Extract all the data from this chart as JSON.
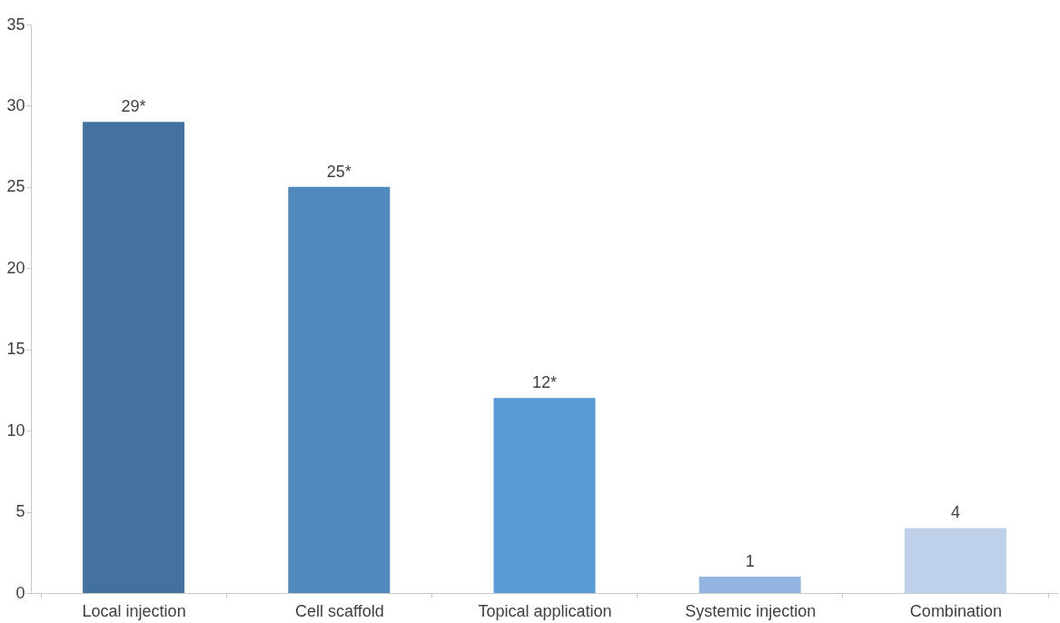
{
  "chart_data": {
    "type": "bar",
    "categories": [
      "Local injection",
      "Cell scaffold",
      "Topical application",
      "Systemic injection",
      "Combination"
    ],
    "values": [
      29,
      25,
      12,
      1,
      4
    ],
    "colors": [
      "#44729e",
      "#508abd",
      "#5b9bd5",
      "#92b4df",
      "#bfd0ea"
    ],
    "value_labels": [
      "29*",
      "25*",
      "12*",
      "1",
      "4"
    ],
    "ylim": [
      0,
      35
    ],
    "yticks": [
      0,
      5,
      10,
      15,
      20,
      25,
      30,
      35
    ],
    "grid": false
  }
}
